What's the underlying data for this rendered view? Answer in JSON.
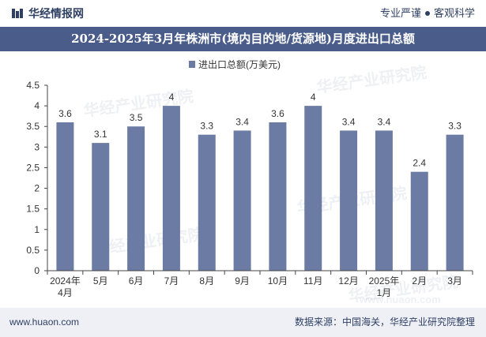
{
  "header": {
    "brand": "华经情报网",
    "slogan_left": "专业严谨",
    "slogan_right": "客观科学"
  },
  "title": "2024-2025年3月年株洲市(境内目的地/货源地)月度进出口总额",
  "footer": {
    "site": "www.huaon.com",
    "source": "数据来源：中国海关，华经产业研究院整理"
  },
  "watermarks": [
    "华经产业研究院",
    "www.huaon.com"
  ],
  "colors": {
    "bar": "#6b7ba3",
    "title_bg": "#4a5d8a",
    "brand": "#2f3f63"
  },
  "chart_data": {
    "type": "bar",
    "title": "2024-2025年3月年株洲市(境内目的地/货源地)月度进出口总额",
    "legend": "进出口总额(万美元)",
    "legend_position": "top-center",
    "categories": [
      [
        "2024年",
        "4月"
      ],
      [
        "5月"
      ],
      [
        "6月"
      ],
      [
        "7月"
      ],
      [
        "8月"
      ],
      [
        "9月"
      ],
      [
        "10月"
      ],
      [
        "11月"
      ],
      [
        "12月"
      ],
      [
        "2025年",
        "1月"
      ],
      [
        "2月"
      ],
      [
        "3月"
      ]
    ],
    "values": [
      3.6,
      3.1,
      3.5,
      4,
      3.3,
      3.4,
      3.6,
      4,
      3.4,
      3.4,
      2.4,
      3.3
    ],
    "yticks": [
      "0",
      "0.5",
      "1",
      "1.5",
      "2",
      "2.5",
      "3",
      "3.5",
      "4",
      "4.5"
    ],
    "ylim": [
      0,
      4.5
    ],
    "grid": false
  }
}
